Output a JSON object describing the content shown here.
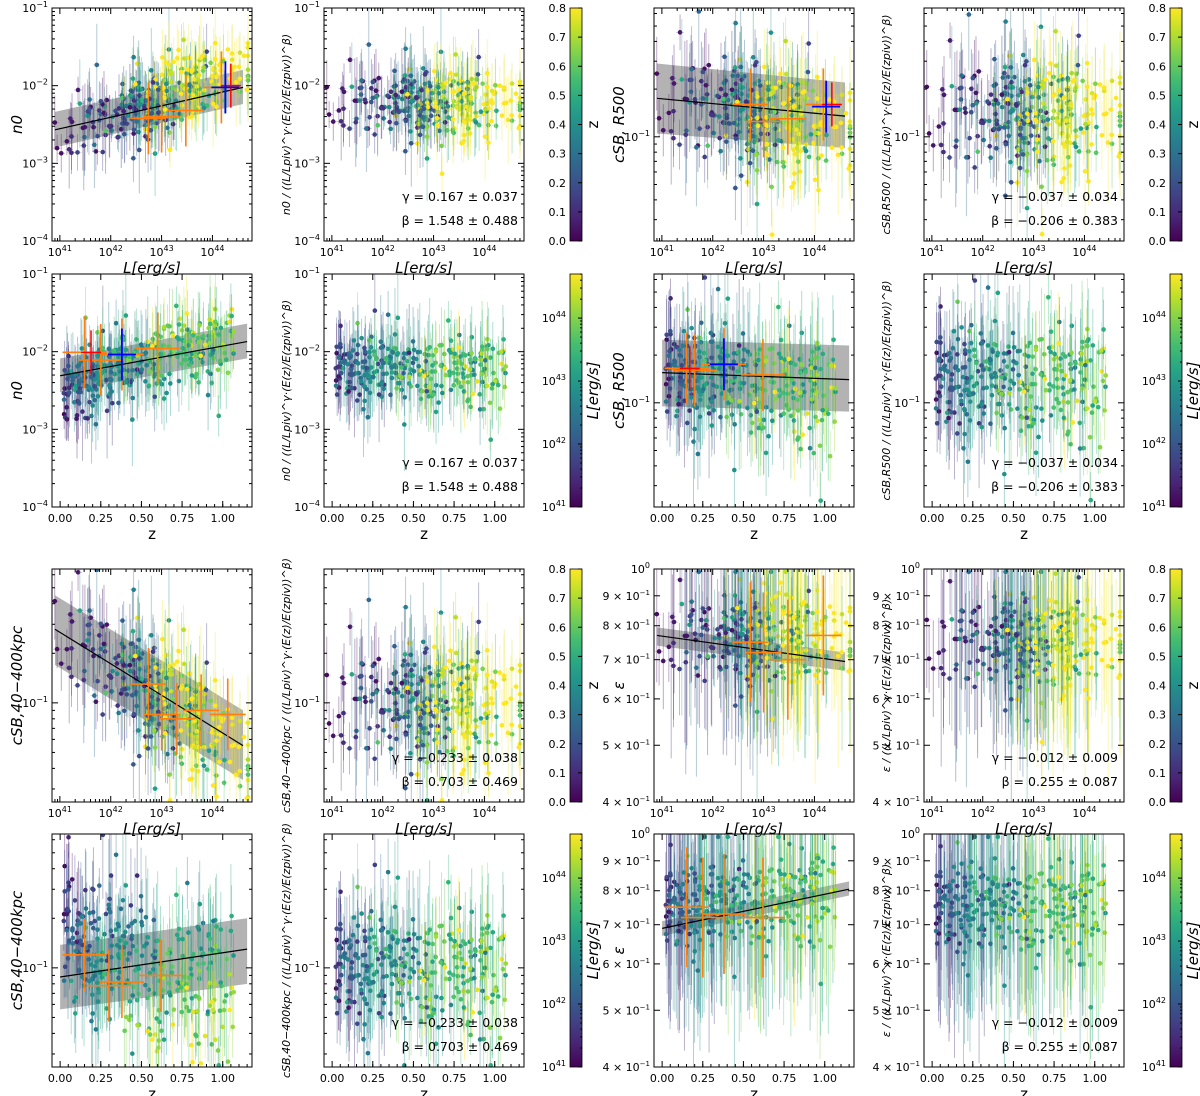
{
  "figure": {
    "colormap": "viridis",
    "colors": {
      "fit_line": "#000000",
      "band": "#9a9a9a",
      "orange_bins": "#ff7f0e",
      "blue_marker": "#0000ff",
      "red_marker": "#ff0000"
    }
  },
  "text": {
    "xlabel_L": "L[erg/s]",
    "xlabel_z": "z",
    "cb_z": "z",
    "cb_L": "L[erg/s]",
    "y_n0": "n0",
    "y_csb500": "cSB, R500",
    "y_csb40": "cSB,40−400kpc",
    "y_eps": "ε",
    "y_norm_n0": "n0 / ((L/Lpiv)^γ·(E(z)/E(zpiv))^β)",
    "y_norm_csb500": "cSB,R500 / ((L/Lpiv)^γ·(E(z)/E(zpiv))^β)",
    "y_norm_csb40": "cSB,40−400kpc / ((L/Lpiv)^γ·(E(z)/E(zpiv))^β)",
    "y_norm_eps": "ε / ((L/Lpiv)^γ·(E(z)/E(zpiv))^β)",
    "gamma_n0": "γ = 0.167 ± 0.037",
    "beta_n0": "β = 1.548 ± 0.488",
    "gamma_csb500": "γ = −0.037 ± 0.034",
    "beta_csb500": "β = −0.206 ± 0.383",
    "gamma_csb40": "γ = −0.233 ± 0.038",
    "beta_csb40": "β = 0.703 ± 0.469",
    "gamma_eps": "γ = −0.012 ± 0.009",
    "beta_eps": "β = 0.255 ± 0.087"
  },
  "ticks": {
    "L_axis": [
      "10^41",
      "10^42",
      "10^43",
      "10^44"
    ],
    "z_axis": [
      "0.00",
      "0.25",
      "0.50",
      "0.75",
      "1.00"
    ],
    "n0_axis": [
      "10^-4",
      "10^-3",
      "10^-2",
      "10^-1"
    ],
    "csb_axis": [
      "10^-1"
    ],
    "eps_axis": [
      "4 × 10^-1",
      "5 × 10^-1",
      "6 × 10^-1",
      "7 × 10^-1",
      "8 × 10^-1",
      "9 × 10^-1",
      "10^0"
    ],
    "cb_z": [
      "0.0",
      "0.1",
      "0.2",
      "0.3",
      "0.4",
      "0.5",
      "0.6",
      "0.7",
      "0.8"
    ],
    "cb_L": [
      "10^41",
      "10^42",
      "10^43",
      "10^44"
    ]
  },
  "chart_data": [
    {
      "type": "scatter",
      "quantity": "n0",
      "x_quantity": "L",
      "color_by": "z",
      "xlim": [
        7e+40,
        6e+44
      ],
      "ylim": [
        0.0001,
        0.1
      ],
      "log_x": true,
      "log_y": true,
      "fit": {
        "x": [
          8e+40,
          4e+44
        ],
        "y": [
          0.0027,
          0.0095
        ],
        "band_lower": [
          0.0016,
          0.0058
        ],
        "band_upper": [
          0.0046,
          0.016
        ]
      },
      "bins": [
        {
          "x": 5.5e+42,
          "y": 0.0038
        },
        {
          "x": 1e+43,
          "y": 0.004
        },
        {
          "x": 3e+43,
          "y": 0.0048
        },
        {
          "x": 1.5e+44,
          "y": 0.0095
        }
      ],
      "blue_marker": {
        "x": 1.8e+44,
        "y": 0.0095
      },
      "red_marker": {
        "x": 2.3e+44,
        "y": 0.01
      }
    },
    {
      "type": "scatter",
      "quantity": "n0 normalized",
      "x_quantity": "L",
      "color_by": "z",
      "xlim": [
        7e+40,
        6e+44
      ],
      "ylim": [
        0.0001,
        0.1
      ],
      "log_x": true,
      "log_y": true,
      "gamma": 0.167,
      "gamma_err": 0.037,
      "beta": 1.548,
      "beta_err": 0.488
    },
    {
      "type": "scatter",
      "quantity": "cSB R500",
      "x_quantity": "L",
      "color_by": "z",
      "xlim": [
        7e+40,
        6e+44
      ],
      "ylim": [
        0.022,
        0.65
      ],
      "log_x": true,
      "log_y": true,
      "fit": {
        "x": [
          8e+40,
          4e+44
        ],
        "y": [
          0.175,
          0.135
        ],
        "band_lower": [
          0.105,
          0.085
        ],
        "band_upper": [
          0.29,
          0.22
        ]
      },
      "bins": [
        {
          "x": 5.5e+42,
          "y": 0.16
        },
        {
          "x": 1e+43,
          "y": 0.125
        },
        {
          "x": 3e+43,
          "y": 0.13
        },
        {
          "x": 1.5e+44,
          "y": 0.16
        }
      ],
      "blue_marker": {
        "x": 1.7e+44,
        "y": 0.155
      },
      "red_marker": {
        "x": 2.2e+44,
        "y": 0.16
      }
    },
    {
      "type": "scatter",
      "quantity": "cSB R500 normalized",
      "x_quantity": "L",
      "color_by": "z",
      "xlim": [
        7e+40,
        6e+44
      ],
      "ylim": [
        0.022,
        0.65
      ],
      "log_x": true,
      "log_y": true,
      "gamma": -0.037,
      "gamma_err": 0.034,
      "beta": -0.206,
      "beta_err": 0.383
    },
    {
      "type": "scatter",
      "quantity": "n0",
      "x_quantity": "z",
      "color_by": "L",
      "xlim": [
        -0.05,
        1.18
      ],
      "ylim": [
        0.0001,
        0.1
      ],
      "log_y": true,
      "fit": {
        "x": [
          0.0,
          1.15
        ],
        "y": [
          0.0049,
          0.0135
        ],
        "band_lower": [
          0.003,
          0.0082
        ],
        "band_upper": [
          0.0082,
          0.023
        ]
      },
      "bins": [
        {
          "x": 0.15,
          "y": 0.0098
        },
        {
          "x": 0.25,
          "y": 0.0078
        },
        {
          "x": 0.38,
          "y": 0.0092
        },
        {
          "x": 0.6,
          "y": 0.011
        }
      ],
      "blue_marker": {
        "x": 0.38,
        "y": 0.0092
      },
      "red_marker": {
        "x": 0.19,
        "y": 0.0098
      }
    },
    {
      "type": "scatter",
      "quantity": "n0 normalized",
      "x_quantity": "z",
      "color_by": "L",
      "xlim": [
        -0.05,
        1.18
      ],
      "ylim": [
        0.0001,
        0.1
      ],
      "log_y": true,
      "gamma": 0.167,
      "gamma_err": 0.037,
      "beta": 1.548,
      "beta_err": 0.488
    },
    {
      "type": "scatter",
      "quantity": "cSB R500",
      "x_quantity": "z",
      "color_by": "L",
      "xlim": [
        -0.05,
        1.18
      ],
      "ylim": [
        0.022,
        0.65
      ],
      "log_y": true,
      "fit": {
        "x": [
          0.0,
          1.15
        ],
        "y": [
          0.155,
          0.14
        ],
        "band_lower": [
          0.095,
          0.088
        ],
        "band_upper": [
          0.25,
          0.23
        ]
      },
      "bins": [
        {
          "x": 0.15,
          "y": 0.165
        },
        {
          "x": 0.2,
          "y": 0.16
        },
        {
          "x": 0.38,
          "y": 0.175
        },
        {
          "x": 0.62,
          "y": 0.15
        }
      ],
      "blue_marker": {
        "x": 0.38,
        "y": 0.175
      },
      "red_marker": {
        "x": 0.17,
        "y": 0.165
      }
    },
    {
      "type": "scatter",
      "quantity": "cSB R500 normalized",
      "x_quantity": "z",
      "color_by": "L",
      "xlim": [
        -0.05,
        1.18
      ],
      "ylim": [
        0.022,
        0.65
      ],
      "log_y": true,
      "gamma": -0.037,
      "gamma_err": 0.034,
      "beta": -0.206,
      "beta_err": 0.383
    },
    {
      "type": "scatter",
      "quantity": "cSB 40-400kpc",
      "x_quantity": "L",
      "color_by": "z",
      "xlim": [
        7e+40,
        6e+44
      ],
      "ylim": [
        0.025,
        0.65
      ],
      "log_x": true,
      "log_y": true,
      "fit": {
        "x": [
          8e+40,
          4e+44
        ],
        "y": [
          0.28,
          0.055
        ],
        "band_lower": [
          0.17,
          0.034
        ],
        "band_upper": [
          0.45,
          0.09
        ]
      },
      "bins": [
        {
          "x": 5.5e+42,
          "y": 0.13
        },
        {
          "x": 1e+43,
          "y": 0.085
        },
        {
          "x": 2e+43,
          "y": 0.08
        },
        {
          "x": 6e+43,
          "y": 0.09
        },
        {
          "x": 2e+44,
          "y": 0.085
        }
      ]
    },
    {
      "type": "scatter",
      "quantity": "cSB 40-400kpc normalized",
      "x_quantity": "L",
      "color_by": "z",
      "xlim": [
        7e+40,
        6e+44
      ],
      "ylim": [
        0.025,
        0.65
      ],
      "log_x": true,
      "log_y": true,
      "gamma": -0.233,
      "gamma_err": 0.038,
      "beta": 0.703,
      "beta_err": 0.469
    },
    {
      "type": "scatter",
      "quantity": "epsilon",
      "x_quantity": "L",
      "color_by": "z",
      "xlim": [
        7e+40,
        6e+44
      ],
      "ylim": [
        0.4,
        1.0
      ],
      "log_x": true,
      "log_y": true,
      "fit": {
        "x": [
          8e+40,
          4e+44
        ],
        "y": [
          0.77,
          0.695
        ],
        "band_lower": [
          0.74,
          0.67
        ],
        "band_upper": [
          0.795,
          0.72
        ]
      },
      "bins": [
        {
          "x": 5.5e+42,
          "y": 0.75
        },
        {
          "x": 1e+43,
          "y": 0.72
        },
        {
          "x": 3e+43,
          "y": 0.7
        },
        {
          "x": 1.5e+44,
          "y": 0.77
        }
      ]
    },
    {
      "type": "scatter",
      "quantity": "epsilon normalized",
      "x_quantity": "L",
      "color_by": "z",
      "xlim": [
        7e+40,
        6e+44
      ],
      "ylim": [
        0.4,
        1.0
      ],
      "log_x": true,
      "log_y": true,
      "gamma": -0.012,
      "gamma_err": 0.009,
      "beta": 0.255,
      "beta_err": 0.087
    },
    {
      "type": "scatter",
      "quantity": "cSB 40-400kpc",
      "x_quantity": "z",
      "color_by": "L",
      "xlim": [
        -0.05,
        1.18
      ],
      "ylim": [
        0.025,
        0.65
      ],
      "log_y": true,
      "fit": {
        "x": [
          0.0,
          1.15
        ],
        "y": [
          0.088,
          0.13
        ],
        "band_lower": [
          0.056,
          0.08
        ],
        "band_upper": [
          0.138,
          0.2
        ]
      },
      "bins": [
        {
          "x": 0.15,
          "y": 0.12
        },
        {
          "x": 0.3,
          "y": 0.078
        },
        {
          "x": 0.38,
          "y": 0.082
        },
        {
          "x": 0.62,
          "y": 0.09
        }
      ]
    },
    {
      "type": "scatter",
      "quantity": "cSB 40-400kpc normalized",
      "x_quantity": "z",
      "color_by": "L",
      "xlim": [
        -0.05,
        1.18
      ],
      "ylim": [
        0.025,
        0.65
      ],
      "log_y": true,
      "gamma": -0.233,
      "gamma_err": 0.038,
      "beta": 0.703,
      "beta_err": 0.469
    },
    {
      "type": "scatter",
      "quantity": "epsilon",
      "x_quantity": "z",
      "color_by": "L",
      "xlim": [
        -0.05,
        1.18
      ],
      "ylim": [
        0.4,
        1.0
      ],
      "log_y": true,
      "fit": {
        "x": [
          0.0,
          1.15
        ],
        "y": [
          0.69,
          0.805
        ],
        "band_lower": [
          0.67,
          0.785
        ],
        "band_upper": [
          0.71,
          0.83
        ]
      },
      "bins": [
        {
          "x": 0.15,
          "y": 0.75
        },
        {
          "x": 0.25,
          "y": 0.72
        },
        {
          "x": 0.38,
          "y": 0.73
        },
        {
          "x": 0.62,
          "y": 0.72
        }
      ]
    },
    {
      "type": "scatter",
      "quantity": "epsilon normalized",
      "x_quantity": "z",
      "color_by": "L",
      "xlim": [
        -0.05,
        1.18
      ],
      "ylim": [
        0.4,
        1.0
      ],
      "log_y": true,
      "gamma": -0.012,
      "gamma_err": 0.009,
      "beta": 0.255,
      "beta_err": 0.087
    }
  ]
}
